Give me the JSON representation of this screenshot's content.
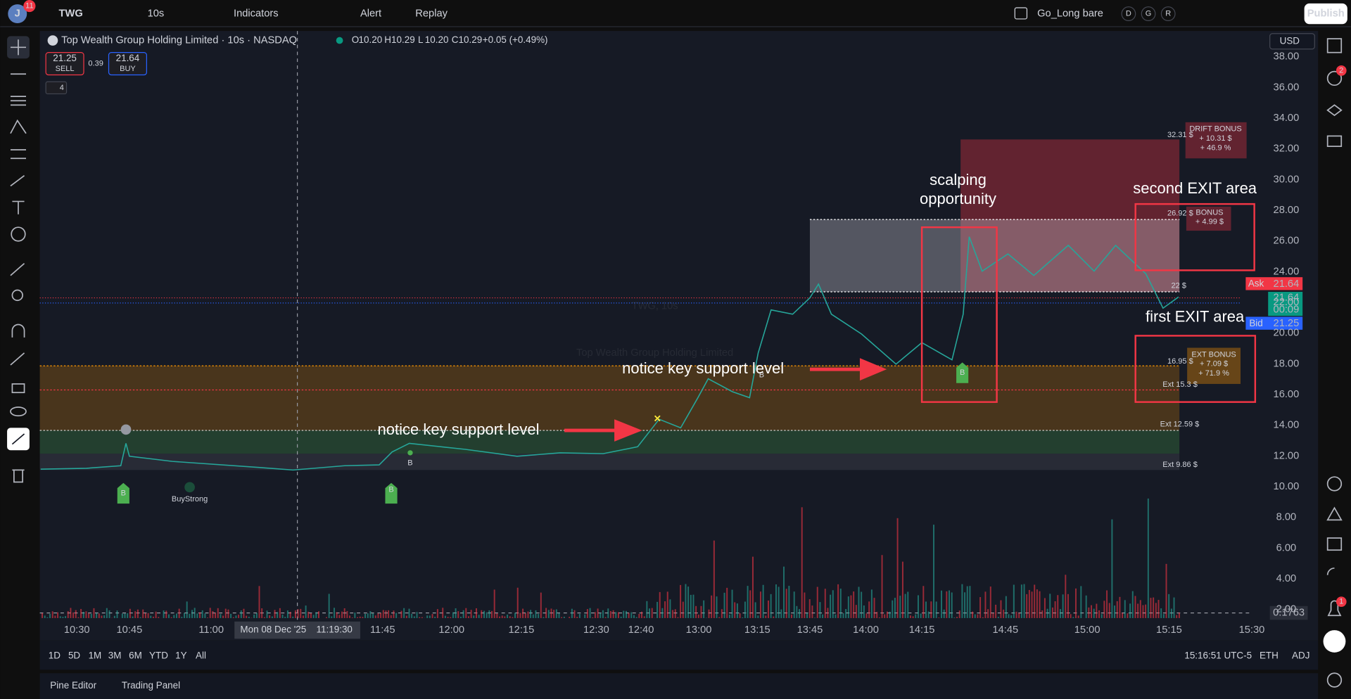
{
  "top_bar": {
    "avatar": "J",
    "avatar_badge": "11",
    "symbol": "TWG",
    "interval": "10s",
    "indicators": "Indicators",
    "alert": "Alert",
    "replay": "Replay",
    "layout": "Go_Long bare",
    "layout_flags": [
      "D",
      "G",
      "R"
    ],
    "publish": "Publish"
  },
  "legend": {
    "title": "Top Wealth Group Holding Limited · 10s · NASDAQ",
    "ohlc": [
      {
        "key": "O",
        "value": "10.20"
      },
      {
        "key": "H",
        "value": "10.29"
      },
      {
        "key": "L",
        "value": "10.20"
      },
      {
        "key": "C",
        "value": "10.29"
      }
    ],
    "change": "+0.05 (+0.49%)",
    "sell_price": "21.25",
    "sell": "SELL",
    "spread": "0.39",
    "buy_price": "21.64",
    "buy": "BUY",
    "indicator_count": "4"
  },
  "watermark": {
    "symbol": "TWG, 10s",
    "name": "Top Wealth Group Holding Limited"
  },
  "price_axis": {
    "currency": "USD",
    "ticks": [
      "38.00",
      "36.00",
      "34.00",
      "32.00",
      "30.00",
      "28.00",
      "26.00",
      "24.00",
      "22.00",
      "20.00",
      "18.00",
      "16.00",
      "14.00",
      "12.00",
      "10.00",
      "8.00",
      "6.00",
      "4.00",
      "2.00"
    ],
    "ask_label": "Ask",
    "ask": "21.64",
    "last": "21.64",
    "countdown": "00:09",
    "bid_label": "Bid",
    "bid": "21.25",
    "volume": "0.1763"
  },
  "time_axis": {
    "ticks": [
      "10:30",
      "10:45",
      "11:00",
      "11:45",
      "12:00",
      "12:15",
      "12:30",
      "12:40",
      "13:00",
      "13:15",
      "13:45",
      "14:00",
      "14:15",
      "14:45",
      "15:00",
      "15:15",
      "15:30"
    ],
    "cursor_date": "Mon 08 Dec '25",
    "cursor_time": "11:19:30"
  },
  "levels": [
    "32.31 $",
    "26.92 $",
    "22 $",
    "16.95 $",
    "Ext 15.3 $",
    "Ext 12.59 $",
    "Ext 9.86 $"
  ],
  "bonus_boxes": [
    {
      "title": "DRIFT BONUS",
      "lines": [
        "+ 10.31 $",
        "+ 46.9 %"
      ]
    },
    {
      "title": "BONUS",
      "lines": [
        "+ 4.99 $"
      ]
    },
    {
      "title": "EXT BONUS",
      "lines": [
        "+ 7.09 $",
        "+ 71.9 %"
      ]
    }
  ],
  "markers": {
    "buy": "B",
    "buy_strong": "BuyStrong"
  },
  "annotations": {
    "scalping": [
      "scalping",
      "opportunity"
    ],
    "second_exit": "second EXIT area",
    "first_exit": "first EXIT area",
    "support_1": "notice key support level",
    "support_2": "notice key support level"
  },
  "bottom_bar": {
    "ranges": [
      "1D",
      "5D",
      "1M",
      "3M",
      "6M",
      "YTD",
      "1Y",
      "All"
    ],
    "clock": "15:16:51 UTC-5",
    "session": "ETH",
    "adj": "ADJ"
  },
  "panels": [
    "Pine Editor",
    "Trading Panel"
  ],
  "side_badges": {
    "alerts": "2",
    "notifications": "1"
  }
}
